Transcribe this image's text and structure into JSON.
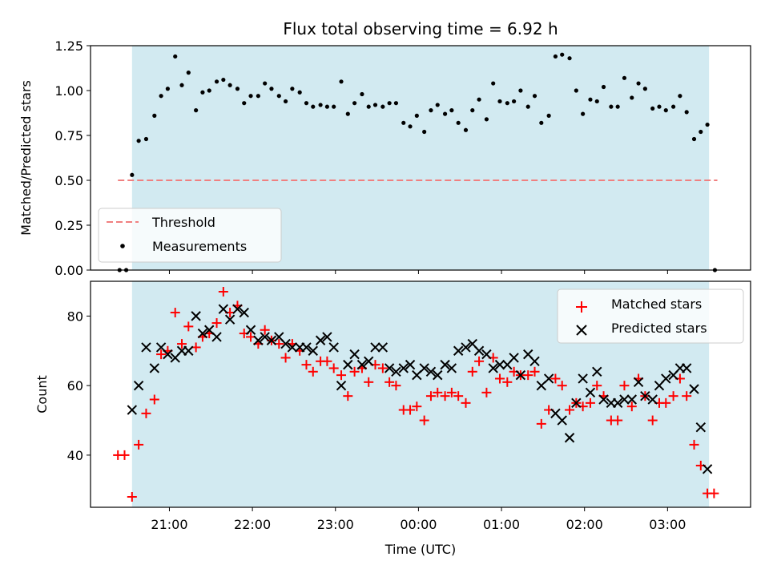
{
  "chart_data": [
    {
      "type": "scatter",
      "title": "Flux total observing time = 6.92 h",
      "ylabel": "Matched/Predicted stars",
      "xlabel": "",
      "x_unit": "hours since 20:00 UTC",
      "ylim": [
        0,
        1.25
      ],
      "yticks": [
        "0.00",
        "0.25",
        "0.50",
        "0.75",
        "1.00",
        "1.25"
      ],
      "shaded_span": [
        20.55,
        27.5
      ],
      "shade_color": "#add8e6",
      "threshold": {
        "name": "Threshold",
        "value": 0.5,
        "x_range": [
          20.38,
          27.6
        ],
        "color": "#f08080"
      },
      "legend": {
        "placement": "lower-left",
        "entries": [
          "Threshold",
          "Measurements"
        ]
      },
      "series": [
        {
          "name": "Measurements",
          "color": "#000000",
          "points": [
            [
              20.4,
              0.0
            ],
            [
              20.48,
              0.0
            ],
            [
              20.55,
              0.53
            ],
            [
              20.63,
              0.72
            ],
            [
              20.72,
              0.73
            ],
            [
              20.82,
              0.86
            ],
            [
              20.9,
              0.97
            ],
            [
              20.98,
              1.01
            ],
            [
              21.07,
              1.19
            ],
            [
              21.15,
              1.03
            ],
            [
              21.23,
              1.1
            ],
            [
              21.32,
              0.89
            ],
            [
              21.4,
              0.99
            ],
            [
              21.48,
              1.0
            ],
            [
              21.57,
              1.05
            ],
            [
              21.65,
              1.06
            ],
            [
              21.73,
              1.03
            ],
            [
              21.82,
              1.01
            ],
            [
              21.9,
              0.93
            ],
            [
              21.98,
              0.97
            ],
            [
              22.07,
              0.97
            ],
            [
              22.15,
              1.04
            ],
            [
              22.23,
              1.01
            ],
            [
              22.32,
              0.97
            ],
            [
              22.4,
              0.94
            ],
            [
              22.48,
              1.01
            ],
            [
              22.57,
              0.99
            ],
            [
              22.65,
              0.93
            ],
            [
              22.73,
              0.91
            ],
            [
              22.82,
              0.92
            ],
            [
              22.9,
              0.91
            ],
            [
              22.98,
              0.91
            ],
            [
              23.07,
              1.05
            ],
            [
              23.15,
              0.87
            ],
            [
              23.23,
              0.93
            ],
            [
              23.32,
              0.98
            ],
            [
              23.4,
              0.91
            ],
            [
              23.48,
              0.92
            ],
            [
              23.57,
              0.91
            ],
            [
              23.65,
              0.93
            ],
            [
              23.73,
              0.93
            ],
            [
              23.82,
              0.82
            ],
            [
              23.9,
              0.8
            ],
            [
              23.98,
              0.86
            ],
            [
              24.07,
              0.77
            ],
            [
              24.15,
              0.89
            ],
            [
              24.23,
              0.92
            ],
            [
              24.32,
              0.87
            ],
            [
              24.4,
              0.89
            ],
            [
              24.48,
              0.82
            ],
            [
              24.57,
              0.78
            ],
            [
              24.65,
              0.89
            ],
            [
              24.73,
              0.95
            ],
            [
              24.82,
              0.84
            ],
            [
              24.9,
              1.04
            ],
            [
              24.98,
              0.94
            ],
            [
              25.07,
              0.93
            ],
            [
              25.15,
              0.94
            ],
            [
              25.23,
              1.0
            ],
            [
              25.32,
              0.91
            ],
            [
              25.4,
              0.97
            ],
            [
              25.48,
              0.82
            ],
            [
              25.57,
              0.86
            ],
            [
              25.65,
              1.19
            ],
            [
              25.73,
              1.2
            ],
            [
              25.82,
              1.18
            ],
            [
              25.9,
              1.0
            ],
            [
              25.98,
              0.87
            ],
            [
              26.07,
              0.95
            ],
            [
              26.15,
              0.94
            ],
            [
              26.23,
              1.02
            ],
            [
              26.32,
              0.91
            ],
            [
              26.4,
              0.91
            ],
            [
              26.48,
              1.07
            ],
            [
              26.57,
              0.96
            ],
            [
              26.65,
              1.04
            ],
            [
              26.73,
              1.01
            ],
            [
              26.82,
              0.9
            ],
            [
              26.9,
              0.91
            ],
            [
              26.98,
              0.89
            ],
            [
              27.07,
              0.91
            ],
            [
              27.15,
              0.97
            ],
            [
              27.23,
              0.88
            ],
            [
              27.32,
              0.73
            ],
            [
              27.4,
              0.77
            ],
            [
              27.48,
              0.81
            ],
            [
              27.57,
              0.0
            ]
          ]
        }
      ]
    },
    {
      "type": "scatter",
      "title": "",
      "xlabel": "Time (UTC)",
      "ylabel": "Count",
      "x_unit": "hours since 20:00 UTC",
      "ylim": [
        25,
        90
      ],
      "yticks": [
        "40",
        "60",
        "80"
      ],
      "ytick_values": [
        40,
        60,
        80
      ],
      "xticks": [
        "21:00",
        "22:00",
        "23:00",
        "00:00",
        "01:00",
        "02:00",
        "03:00"
      ],
      "xtick_values": [
        21,
        22,
        23,
        24,
        25,
        26,
        27
      ],
      "shaded_span": [
        20.55,
        27.5
      ],
      "shade_color": "#add8e6",
      "legend": {
        "placement": "upper-right",
        "entries": [
          "Matched stars",
          "Predicted stars"
        ]
      },
      "series": [
        {
          "name": "Matched stars",
          "color": "#ff0000",
          "marker": "+",
          "points": [
            [
              20.38,
              40
            ],
            [
              20.46,
              40
            ],
            [
              20.55,
              28
            ],
            [
              20.63,
              43
            ],
            [
              20.72,
              52
            ],
            [
              20.82,
              56
            ],
            [
              20.9,
              69
            ],
            [
              20.98,
              70
            ],
            [
              21.07,
              81
            ],
            [
              21.15,
              72
            ],
            [
              21.23,
              77
            ],
            [
              21.32,
              71
            ],
            [
              21.4,
              74
            ],
            [
              21.48,
              75
            ],
            [
              21.57,
              78
            ],
            [
              21.65,
              87
            ],
            [
              21.73,
              81
            ],
            [
              21.82,
              83
            ],
            [
              21.9,
              75
            ],
            [
              21.98,
              74
            ],
            [
              22.07,
              72
            ],
            [
              22.15,
              76
            ],
            [
              22.23,
              73
            ],
            [
              22.32,
              72
            ],
            [
              22.4,
              68
            ],
            [
              22.48,
              72
            ],
            [
              22.57,
              70
            ],
            [
              22.65,
              66
            ],
            [
              22.73,
              64
            ],
            [
              22.82,
              67
            ],
            [
              22.9,
              67
            ],
            [
              22.98,
              65
            ],
            [
              23.07,
              63
            ],
            [
              23.15,
              57
            ],
            [
              23.23,
              64
            ],
            [
              23.32,
              65
            ],
            [
              23.4,
              61
            ],
            [
              23.48,
              66
            ],
            [
              23.57,
              65
            ],
            [
              23.65,
              61
            ],
            [
              23.73,
              60
            ],
            [
              23.82,
              53
            ],
            [
              23.9,
              53
            ],
            [
              23.98,
              54
            ],
            [
              24.07,
              50
            ],
            [
              24.15,
              57
            ],
            [
              24.23,
              58
            ],
            [
              24.32,
              57
            ],
            [
              24.4,
              58
            ],
            [
              24.48,
              57
            ],
            [
              24.57,
              55
            ],
            [
              24.65,
              64
            ],
            [
              24.73,
              67
            ],
            [
              24.82,
              58
            ],
            [
              24.9,
              68
            ],
            [
              24.98,
              62
            ],
            [
              25.07,
              61
            ],
            [
              25.15,
              64
            ],
            [
              25.23,
              63
            ],
            [
              25.32,
              63
            ],
            [
              25.4,
              64
            ],
            [
              25.48,
              49
            ],
            [
              25.57,
              53
            ],
            [
              25.65,
              62
            ],
            [
              25.73,
              60
            ],
            [
              25.82,
              53
            ],
            [
              25.9,
              55
            ],
            [
              25.98,
              54
            ],
            [
              26.07,
              55
            ],
            [
              26.15,
              60
            ],
            [
              26.23,
              57
            ],
            [
              26.32,
              50
            ],
            [
              26.4,
              50
            ],
            [
              26.48,
              60
            ],
            [
              26.57,
              54
            ],
            [
              26.65,
              62
            ],
            [
              26.73,
              57
            ],
            [
              26.82,
              50
            ],
            [
              26.9,
              55
            ],
            [
              26.98,
              55
            ],
            [
              27.07,
              57
            ],
            [
              27.15,
              62
            ],
            [
              27.23,
              57
            ],
            [
              27.32,
              43
            ],
            [
              27.4,
              37
            ],
            [
              27.48,
              29
            ],
            [
              27.56,
              29
            ]
          ]
        },
        {
          "name": "Predicted stars",
          "color": "#000000",
          "marker": "x",
          "points": [
            [
              20.55,
              53
            ],
            [
              20.63,
              60
            ],
            [
              20.72,
              71
            ],
            [
              20.82,
              65
            ],
            [
              20.9,
              71
            ],
            [
              20.98,
              69
            ],
            [
              21.07,
              68
            ],
            [
              21.15,
              70
            ],
            [
              21.23,
              70
            ],
            [
              21.32,
              80
            ],
            [
              21.4,
              75
            ],
            [
              21.48,
              76
            ],
            [
              21.57,
              74
            ],
            [
              21.65,
              82
            ],
            [
              21.73,
              79
            ],
            [
              21.82,
              82
            ],
            [
              21.9,
              81
            ],
            [
              21.98,
              76
            ],
            [
              22.07,
              73
            ],
            [
              22.15,
              74
            ],
            [
              22.23,
              73
            ],
            [
              22.32,
              74
            ],
            [
              22.4,
              72
            ],
            [
              22.48,
              71
            ],
            [
              22.57,
              71
            ],
            [
              22.65,
              71
            ],
            [
              22.73,
              70
            ],
            [
              22.82,
              73
            ],
            [
              22.9,
              74
            ],
            [
              22.98,
              71
            ],
            [
              23.07,
              60
            ],
            [
              23.15,
              66
            ],
            [
              23.23,
              69
            ],
            [
              23.32,
              66
            ],
            [
              23.4,
              67
            ],
            [
              23.48,
              71
            ],
            [
              23.57,
              71
            ],
            [
              23.65,
              65
            ],
            [
              23.73,
              64
            ],
            [
              23.82,
              65
            ],
            [
              23.9,
              66
            ],
            [
              23.98,
              63
            ],
            [
              24.07,
              65
            ],
            [
              24.15,
              64
            ],
            [
              24.23,
              63
            ],
            [
              24.32,
              66
            ],
            [
              24.4,
              65
            ],
            [
              24.48,
              70
            ],
            [
              24.57,
              71
            ],
            [
              24.65,
              72
            ],
            [
              24.73,
              70
            ],
            [
              24.82,
              69
            ],
            [
              24.9,
              65
            ],
            [
              24.98,
              66
            ],
            [
              25.07,
              66
            ],
            [
              25.15,
              68
            ],
            [
              25.23,
              63
            ],
            [
              25.32,
              69
            ],
            [
              25.4,
              67
            ],
            [
              25.48,
              60
            ],
            [
              25.57,
              62
            ],
            [
              25.65,
              52
            ],
            [
              25.73,
              50
            ],
            [
              25.82,
              45
            ],
            [
              25.9,
              55
            ],
            [
              25.98,
              62
            ],
            [
              26.07,
              58
            ],
            [
              26.15,
              64
            ],
            [
              26.23,
              56
            ],
            [
              26.32,
              55
            ],
            [
              26.4,
              55
            ],
            [
              26.48,
              56
            ],
            [
              26.57,
              56
            ],
            [
              26.65,
              61
            ],
            [
              26.73,
              57
            ],
            [
              26.82,
              56
            ],
            [
              26.9,
              60
            ],
            [
              26.98,
              62
            ],
            [
              27.07,
              63
            ],
            [
              27.15,
              65
            ],
            [
              27.23,
              65
            ],
            [
              27.32,
              59
            ],
            [
              27.4,
              48
            ],
            [
              27.48,
              36
            ]
          ]
        }
      ]
    }
  ]
}
